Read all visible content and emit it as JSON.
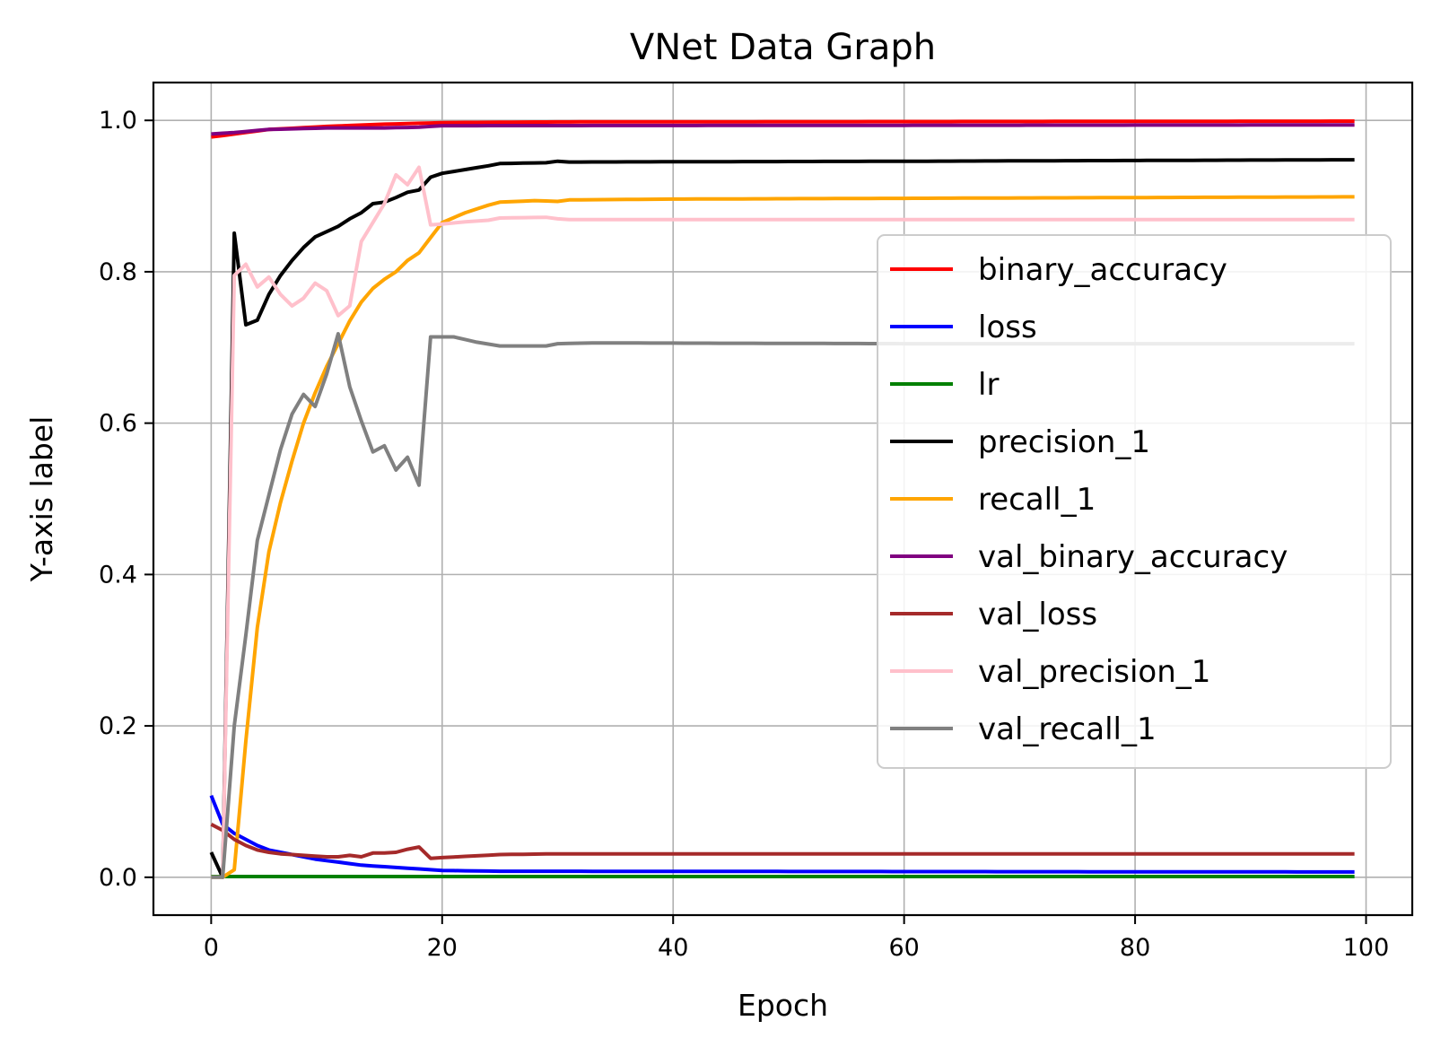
{
  "chart_data": {
    "type": "line",
    "title": "VNet Data Graph",
    "xlabel": "Epoch",
    "ylabel": "Y-axis label",
    "xlim": [
      -5,
      104
    ],
    "ylim": [
      -0.05,
      1.05
    ],
    "x_ticks": [
      0,
      20,
      40,
      60,
      80,
      100
    ],
    "x_tick_labels": [
      "0",
      "20",
      "40",
      "60",
      "80",
      "100"
    ],
    "y_ticks": [
      0.0,
      0.2,
      0.4,
      0.6,
      0.8,
      1.0
    ],
    "y_tick_labels": [
      "0.0",
      "0.2",
      "0.4",
      "0.6",
      "0.8",
      "1.0"
    ],
    "grid": true,
    "legend_position": "center-right",
    "x": [
      0,
      1,
      2,
      3,
      4,
      5,
      6,
      7,
      8,
      9,
      10,
      11,
      12,
      13,
      14,
      15,
      16,
      17,
      18,
      19,
      20,
      21,
      22,
      23,
      24,
      25,
      26,
      27,
      28,
      29,
      30,
      31,
      32,
      33,
      34,
      35,
      36,
      37,
      38,
      39,
      40,
      41,
      42,
      43,
      44,
      45,
      46,
      47,
      48,
      49,
      50,
      51,
      52,
      53,
      54,
      55,
      56,
      57,
      58,
      59,
      60,
      61,
      62,
      63,
      64,
      65,
      66,
      67,
      68,
      69,
      70,
      71,
      72,
      73,
      74,
      75,
      76,
      77,
      78,
      79,
      80,
      81,
      82,
      83,
      84,
      85,
      86,
      87,
      88,
      89,
      90,
      91,
      92,
      93,
      94,
      95,
      96,
      97,
      98,
      99
    ],
    "series": [
      {
        "name": "binary_accuracy",
        "color": "#ff0000",
        "keyframes": [
          [
            0,
            0.978
          ],
          [
            2,
            0.982
          ],
          [
            5,
            0.988
          ],
          [
            10,
            0.992
          ],
          [
            15,
            0.995
          ],
          [
            20,
            0.997
          ],
          [
            30,
            0.998
          ],
          [
            99,
            0.999
          ]
        ]
      },
      {
        "name": "loss",
        "color": "#0000ff",
        "keyframes": [
          [
            0,
            0.108
          ],
          [
            1,
            0.07
          ],
          [
            2,
            0.058
          ],
          [
            3,
            0.05
          ],
          [
            4,
            0.042
          ],
          [
            5,
            0.036
          ],
          [
            7,
            0.03
          ],
          [
            9,
            0.024
          ],
          [
            11,
            0.02
          ],
          [
            13,
            0.016
          ],
          [
            15,
            0.014
          ],
          [
            17,
            0.012
          ],
          [
            20,
            0.009
          ],
          [
            25,
            0.008
          ],
          [
            99,
            0.007
          ]
        ]
      },
      {
        "name": "lr",
        "color": "#008000",
        "keyframes": [
          [
            0,
            0.001
          ],
          [
            99,
            0.001
          ]
        ]
      },
      {
        "name": "precision_1",
        "color": "#000000",
        "keyframes": [
          [
            0,
            0.033
          ],
          [
            1,
            0.0
          ],
          [
            2,
            0.851
          ],
          [
            3,
            0.73
          ],
          [
            4,
            0.736
          ],
          [
            5,
            0.77
          ],
          [
            6,
            0.795
          ],
          [
            7,
            0.815
          ],
          [
            8,
            0.832
          ],
          [
            9,
            0.846
          ],
          [
            10,
            0.853
          ],
          [
            11,
            0.86
          ],
          [
            12,
            0.87
          ],
          [
            13,
            0.878
          ],
          [
            14,
            0.89
          ],
          [
            15,
            0.892
          ],
          [
            16,
            0.898
          ],
          [
            17,
            0.905
          ],
          [
            18,
            0.908
          ],
          [
            19,
            0.925
          ],
          [
            20,
            0.93
          ],
          [
            22,
            0.935
          ],
          [
            24,
            0.94
          ],
          [
            25,
            0.943
          ],
          [
            29,
            0.944
          ],
          [
            30,
            0.946
          ],
          [
            31,
            0.945
          ],
          [
            60,
            0.946
          ],
          [
            99,
            0.948
          ]
        ]
      },
      {
        "name": "recall_1",
        "color": "#ffa500",
        "keyframes": [
          [
            0,
            0.0
          ],
          [
            1,
            0.0
          ],
          [
            2,
            0.01
          ],
          [
            3,
            0.18
          ],
          [
            4,
            0.33
          ],
          [
            5,
            0.43
          ],
          [
            6,
            0.495
          ],
          [
            7,
            0.55
          ],
          [
            8,
            0.6
          ],
          [
            9,
            0.64
          ],
          [
            10,
            0.675
          ],
          [
            11,
            0.705
          ],
          [
            12,
            0.735
          ],
          [
            13,
            0.76
          ],
          [
            14,
            0.778
          ],
          [
            15,
            0.79
          ],
          [
            16,
            0.8
          ],
          [
            17,
            0.815
          ],
          [
            18,
            0.825
          ],
          [
            19,
            0.845
          ],
          [
            20,
            0.865
          ],
          [
            22,
            0.878
          ],
          [
            24,
            0.888
          ],
          [
            25,
            0.892
          ],
          [
            28,
            0.894
          ],
          [
            30,
            0.893
          ],
          [
            31,
            0.895
          ],
          [
            40,
            0.896
          ],
          [
            99,
            0.899
          ]
        ]
      },
      {
        "name": "val_binary_accuracy",
        "color": "#800080",
        "keyframes": [
          [
            0,
            0.982
          ],
          [
            2,
            0.984
          ],
          [
            5,
            0.988
          ],
          [
            10,
            0.99
          ],
          [
            15,
            0.99
          ],
          [
            18,
            0.991
          ],
          [
            20,
            0.993
          ],
          [
            99,
            0.994
          ]
        ]
      },
      {
        "name": "val_loss",
        "color": "#a52a2a",
        "keyframes": [
          [
            0,
            0.07
          ],
          [
            1,
            0.062
          ],
          [
            2,
            0.05
          ],
          [
            3,
            0.042
          ],
          [
            4,
            0.036
          ],
          [
            5,
            0.033
          ],
          [
            6,
            0.031
          ],
          [
            7,
            0.03
          ],
          [
            8,
            0.029
          ],
          [
            9,
            0.028
          ],
          [
            10,
            0.027
          ],
          [
            11,
            0.027
          ],
          [
            12,
            0.029
          ],
          [
            13,
            0.027
          ],
          [
            14,
            0.032
          ],
          [
            15,
            0.032
          ],
          [
            16,
            0.033
          ],
          [
            17,
            0.037
          ],
          [
            18,
            0.04
          ],
          [
            19,
            0.025
          ],
          [
            20,
            0.026
          ],
          [
            25,
            0.03
          ],
          [
            30,
            0.031
          ],
          [
            99,
            0.031
          ]
        ]
      },
      {
        "name": "val_precision_1",
        "color": "#ffc0cb",
        "keyframes": [
          [
            0,
            0.0
          ],
          [
            1,
            0.0
          ],
          [
            2,
            0.795
          ],
          [
            3,
            0.81
          ],
          [
            4,
            0.78
          ],
          [
            5,
            0.793
          ],
          [
            6,
            0.77
          ],
          [
            7,
            0.755
          ],
          [
            8,
            0.765
          ],
          [
            9,
            0.785
          ],
          [
            10,
            0.775
          ],
          [
            11,
            0.742
          ],
          [
            12,
            0.755
          ],
          [
            13,
            0.84
          ],
          [
            14,
            0.865
          ],
          [
            15,
            0.89
          ],
          [
            16,
            0.928
          ],
          [
            17,
            0.915
          ],
          [
            18,
            0.938
          ],
          [
            19,
            0.862
          ],
          [
            20,
            0.863
          ],
          [
            22,
            0.866
          ],
          [
            24,
            0.868
          ],
          [
            25,
            0.871
          ],
          [
            29,
            0.872
          ],
          [
            30,
            0.87
          ],
          [
            31,
            0.869
          ],
          [
            99,
            0.869
          ]
        ]
      },
      {
        "name": "val_recall_1",
        "color": "#808080",
        "keyframes": [
          [
            0,
            0.0
          ],
          [
            1,
            0.0
          ],
          [
            2,
            0.2
          ],
          [
            3,
            0.32
          ],
          [
            4,
            0.445
          ],
          [
            5,
            0.505
          ],
          [
            6,
            0.565
          ],
          [
            7,
            0.612
          ],
          [
            8,
            0.638
          ],
          [
            9,
            0.622
          ],
          [
            10,
            0.665
          ],
          [
            11,
            0.718
          ],
          [
            12,
            0.648
          ],
          [
            13,
            0.603
          ],
          [
            14,
            0.562
          ],
          [
            15,
            0.57
          ],
          [
            16,
            0.538
          ],
          [
            17,
            0.555
          ],
          [
            18,
            0.518
          ],
          [
            19,
            0.714
          ],
          [
            21,
            0.714
          ],
          [
            23,
            0.707
          ],
          [
            25,
            0.702
          ],
          [
            29,
            0.702
          ],
          [
            30,
            0.705
          ],
          [
            33,
            0.706
          ],
          [
            60,
            0.705
          ],
          [
            99,
            0.705
          ]
        ]
      }
    ]
  }
}
